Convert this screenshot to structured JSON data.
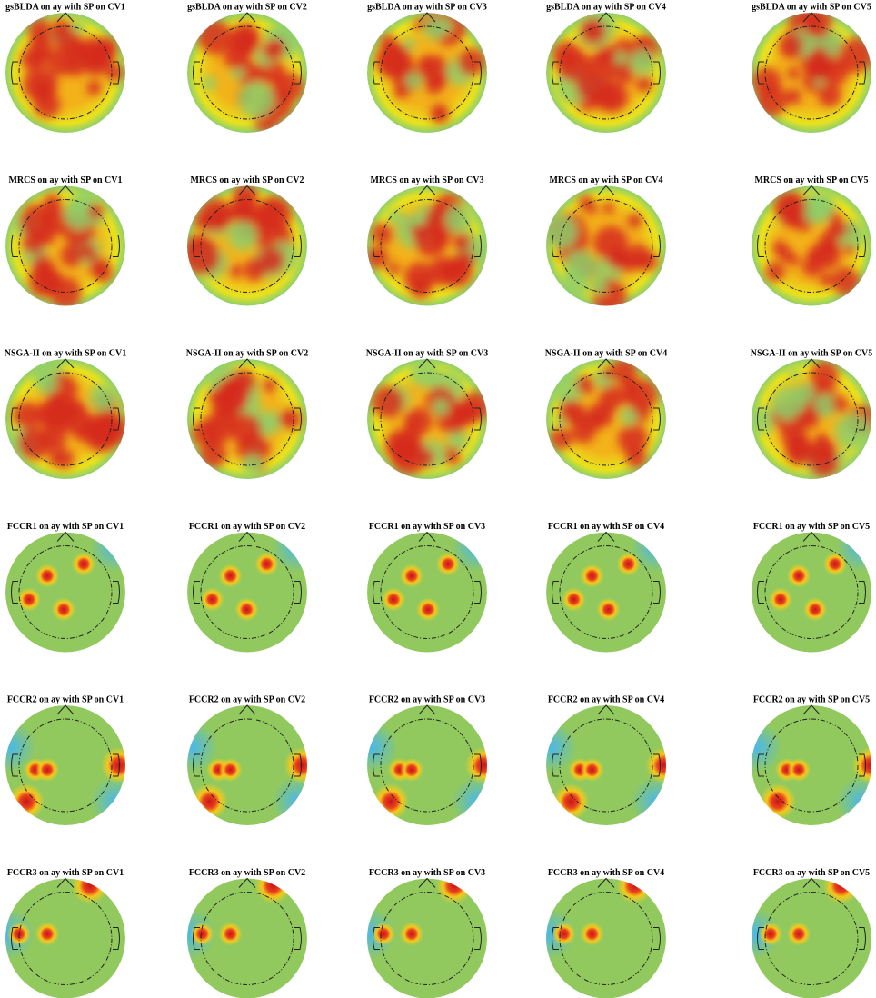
{
  "rows": [
    [
      "gsBLDA on ay with SP on CV1",
      "gsBLDA on ay with SP on CV2",
      "gsBLDA on ay with SP on CV3",
      "gsBLDA on ay with SP on CV4",
      "gsBLDA on ay with SP on CV5"
    ],
    [
      "MRCS on ay with SP on CV1",
      "MRCS on ay with SP on CV2",
      "MRCS on ay with SP on CV3",
      "MRCS on ay with SP on CV4",
      "MRCS on ay with SP on CV5"
    ],
    [
      "NSGA-II on ay with SP on CV1",
      "NSGA-II on ay with SP on CV2",
      "NSGA-II on ay with SP on CV3",
      "NSGA-II on ay with SP on CV4",
      "NSGA-II on ay with SP on CV5"
    ],
    [
      "FCCR1 on ay with SP on CV1",
      "FCCR1 on ay with SP on CV2",
      "FCCR1 on ay with SP on CV3",
      "FCCR1 on ay with SP on CV4",
      "FCCR1 on ay with SP on CV5"
    ],
    [
      "FCCR2 on ay with SP on CV1",
      "FCCR2 on ay with SP on CV2",
      "FCCR2 on ay with SP on CV3",
      "FCCR2 on ay with SP on CV4",
      "FCCR2 on ay with SP on CV5"
    ],
    [
      "FCCR3 on ay with SP on CV1",
      "FCCR3 on ay with SP on CV2",
      "FCCR3 on ay with SP on CV3",
      "FCCR3 on ay with SP on CV4",
      "FCCR3 on ay with SP on CV5"
    ]
  ]
}
